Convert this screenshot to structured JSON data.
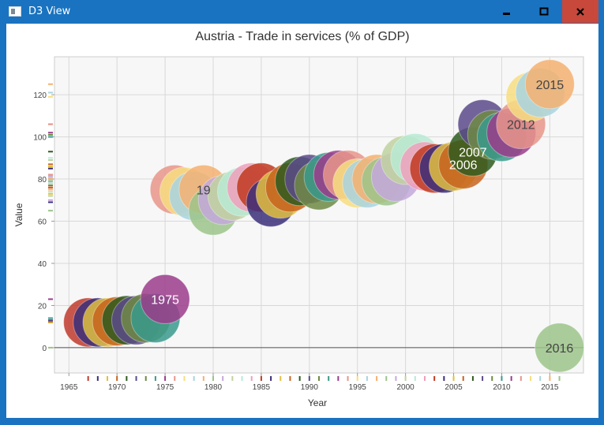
{
  "window": {
    "title": "D3 View",
    "controls": {
      "minimize": "minimize-icon",
      "maximize": "maximize-icon",
      "close": "close-icon"
    },
    "accent": "#1a73c0",
    "close_color": "#c8483c"
  },
  "chart_data": {
    "type": "scatter",
    "title": "Austria - Trade in services (% of GDP)",
    "xlabel": "Year",
    "ylabel": "Value",
    "xlim": [
      1963.5,
      2018.5
    ],
    "ylim": [
      -12,
      138
    ],
    "xticks": [
      1965,
      1970,
      1975,
      1980,
      1985,
      1990,
      1995,
      2000,
      2005,
      2010,
      2015
    ],
    "yticks": [
      0,
      20,
      40,
      60,
      80,
      100,
      120
    ],
    "grid": true,
    "points": [
      {
        "x": 1967,
        "y": 12,
        "color": "#c0392b"
      },
      {
        "x": 1968,
        "y": 12,
        "color": "#3b2f7a"
      },
      {
        "x": 1969,
        "y": 12,
        "color": "#e0c040"
      },
      {
        "x": 1970,
        "y": 12.5,
        "color": "#c8641e"
      },
      {
        "x": 1971,
        "y": 13,
        "color": "#2e5a1e"
      },
      {
        "x": 1972,
        "y": 13,
        "color": "#5a4a8a"
      },
      {
        "x": 1973,
        "y": 14,
        "color": "#6e8a44"
      },
      {
        "x": 1974,
        "y": 14,
        "color": "#3a9a8c"
      },
      {
        "x": 1975,
        "y": 23,
        "color": "#9b3c8c",
        "label": "1975"
      },
      {
        "x": 1976,
        "y": 75,
        "color": "#e8958a"
      },
      {
        "x": 1977,
        "y": 74,
        "color": "#f7dd80"
      },
      {
        "x": 1978,
        "y": 72,
        "color": "#a8d4e0"
      },
      {
        "x": 1979,
        "y": 75,
        "color": "#f5b070",
        "label": "19"
      },
      {
        "x": 1980,
        "y": 65,
        "color": "#9cc48a"
      },
      {
        "x": 1981,
        "y": 70,
        "color": "#c4a8dc"
      },
      {
        "x": 1982,
        "y": 72,
        "color": "#c0d2a0"
      },
      {
        "x": 1983,
        "y": 74,
        "color": "#b8ead4"
      },
      {
        "x": 1984,
        "y": 76,
        "color": "#ef9fbc"
      },
      {
        "x": 1985,
        "y": 76,
        "color": "#c0391f"
      },
      {
        "x": 1986,
        "y": 69,
        "color": "#3b2f7a"
      },
      {
        "x": 1987,
        "y": 73,
        "color": "#e0c040"
      },
      {
        "x": 1988,
        "y": 76,
        "color": "#c8641e"
      },
      {
        "x": 1989,
        "y": 79,
        "color": "#2e5a1e"
      },
      {
        "x": 1990,
        "y": 80,
        "color": "#5a4a8a"
      },
      {
        "x": 1991,
        "y": 77,
        "color": "#6e8a44"
      },
      {
        "x": 1992,
        "y": 81,
        "color": "#3a9a8c"
      },
      {
        "x": 1993,
        "y": 82,
        "color": "#9b3c8c"
      },
      {
        "x": 1994,
        "y": 82,
        "color": "#e8958a"
      },
      {
        "x": 1995,
        "y": 78,
        "color": "#f7dd80"
      },
      {
        "x": 1996,
        "y": 78,
        "color": "#a8d4e0"
      },
      {
        "x": 1997,
        "y": 80,
        "color": "#f5b070"
      },
      {
        "x": 1998,
        "y": 79,
        "color": "#9cc48a"
      },
      {
        "x": 1999,
        "y": 81,
        "color": "#c4a8dc"
      },
      {
        "x": 2000,
        "y": 89,
        "color": "#c0d2a0"
      },
      {
        "x": 2001,
        "y": 90,
        "color": "#b8ead4"
      },
      {
        "x": 2002,
        "y": 86,
        "color": "#ef9fbc"
      },
      {
        "x": 2003,
        "y": 85,
        "color": "#c0391f"
      },
      {
        "x": 2004,
        "y": 85,
        "color": "#3b2f7a"
      },
      {
        "x": 2005,
        "y": 86,
        "color": "#e0c040"
      },
      {
        "x": 2006,
        "y": 87,
        "color": "#c8641e",
        "label": "2006"
      },
      {
        "x": 2007,
        "y": 93,
        "color": "#2e5a1e",
        "label": "2007"
      },
      {
        "x": 2008,
        "y": 106,
        "color": "#5a4a8a"
      },
      {
        "x": 2009,
        "y": 101,
        "color": "#6e8a44"
      },
      {
        "x": 2010,
        "y": 100,
        "color": "#3a9a8c"
      },
      {
        "x": 2011,
        "y": 102,
        "color": "#9b3c8c"
      },
      {
        "x": 2012,
        "y": 106,
        "color": "#e8958a",
        "label": "2012"
      },
      {
        "x": 2013,
        "y": 119,
        "color": "#f7dd80"
      },
      {
        "x": 2014,
        "y": 121,
        "color": "#a8d4e0"
      },
      {
        "x": 2015,
        "y": 125,
        "color": "#f5b070",
        "label": "2015"
      },
      {
        "x": 2016,
        "y": 0,
        "color": "#9cc48a",
        "label": "2016"
      }
    ]
  }
}
